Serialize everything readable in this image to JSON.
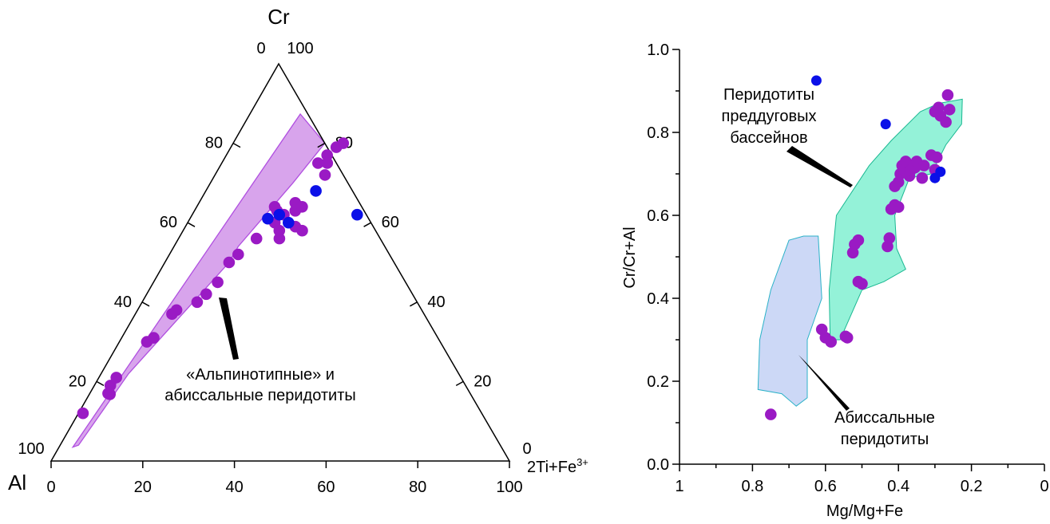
{
  "chart_data": [
    {
      "type": "scatter",
      "subtype": "ternary",
      "vertices": {
        "top": "Cr",
        "left": "Al",
        "right": "2Ti+Fe3+"
      },
      "right_vertex_label": {
        "base": "2Ti+Fe",
        "sup": "3+"
      },
      "bottom_ticks": [
        "0",
        "20",
        "40",
        "60",
        "80",
        "100"
      ],
      "left_side_ticks": [
        "20",
        "40",
        "60",
        "80"
      ],
      "right_side_ticks": [
        "80",
        "60",
        "40",
        "20"
      ],
      "corner_labels": {
        "top_left": "0",
        "top_right": "100",
        "bottom_left": "100",
        "bottom_right": "0"
      },
      "colors": {
        "field_fill": "#d8a4ec",
        "field_stroke": "#b04fe0",
        "purple_point": "#9a1ac4",
        "blue_point": "#0b10e8",
        "axis": "#000000"
      },
      "field": {
        "label_lines": [
          "«Альпинотипные» и",
          "абиссальные перидотиты"
        ],
        "polygon": [
          [
            0.1101,
            0.8735
          ],
          [
            0.2,
            0.8
          ],
          [
            0.18,
            0.7
          ],
          [
            0.14,
            0.54
          ],
          [
            0.14,
            0.5
          ],
          [
            0.06,
            0.22
          ],
          [
            0.04,
            0.04
          ],
          [
            0.0301,
            0.0349
          ]
        ]
      },
      "series": [
        {
          "color": "purple",
          "points": [
            [
              0.01,
              0.12
            ],
            [
              0.04,
              0.17
            ],
            [
              0.045,
              0.168
            ],
            [
              0.035,
              0.19
            ],
            [
              0.038,
              0.21
            ],
            [
              0.06,
              0.3
            ],
            [
              0.07,
              0.31
            ],
            [
              0.08,
              0.37
            ],
            [
              0.085,
              0.38
            ],
            [
              0.13,
              0.42
            ],
            [
              0.12,
              0.4
            ],
            [
              0.14,
              0.45
            ],
            [
              0.14,
              0.5
            ],
            [
              0.15,
              0.52
            ],
            [
              0.17,
              0.56
            ],
            [
              0.19,
              0.6
            ],
            [
              0.2,
              0.62
            ],
            [
              0.22,
              0.56
            ],
            [
              0.21,
              0.58
            ],
            [
              0.24,
              0.59
            ],
            [
              0.26,
              0.58
            ],
            [
              0.21,
              0.65
            ],
            [
              0.22,
              0.63
            ],
            [
              0.23,
              0.64
            ],
            [
              0.18,
              0.63
            ],
            [
              0.17,
              0.64
            ],
            [
              0.21,
              0.75
            ],
            [
              0.22,
              0.77
            ],
            [
              0.23,
              0.75
            ],
            [
              0.23,
              0.79
            ],
            [
              0.24,
              0.8
            ],
            [
              0.24,
              0.72
            ]
          ]
        },
        {
          "color": "blue",
          "points": [
            [
              0.17,
              0.61
            ],
            [
              0.19,
              0.62
            ],
            [
              0.22,
              0.6
            ],
            [
              0.24,
              0.68
            ],
            [
              0.36,
              0.62
            ]
          ]
        }
      ]
    },
    {
      "type": "scatter",
      "ylabel": "Cr/Cr+Al",
      "xlabel": "Mg/Mg+Fe",
      "xlim": [
        1,
        0
      ],
      "ylim": [
        0,
        1
      ],
      "x_ticks": [
        "1",
        "0.8",
        "0.6",
        "0.4",
        "0.2",
        "0"
      ],
      "y_ticks": [
        "0.0",
        "0.2",
        "0.4",
        "0.6",
        "0.8",
        "1.0"
      ],
      "colors": {
        "forearc_fill": "#94f2d8",
        "forearc_stroke": "#1bb892",
        "abyssal_fill": "#ccd8f6",
        "abyssal_stroke": "#2bb2c8",
        "purple_point": "#9a1ac4",
        "blue_point": "#0b10e8"
      },
      "fields": [
        {
          "key": "forearc",
          "label_lines": [
            "Перидотиты",
            "преддуговых",
            "бассейнов"
          ],
          "polygon": [
            [
              0.587,
              0.3
            ],
            [
              0.59,
              0.42
            ],
            [
              0.57,
              0.6
            ],
            [
              0.48,
              0.72
            ],
            [
              0.42,
              0.78
            ],
            [
              0.34,
              0.85
            ],
            [
              0.29,
              0.87
            ],
            [
              0.225,
              0.88
            ],
            [
              0.227,
              0.82
            ],
            [
              0.27,
              0.77
            ],
            [
              0.31,
              0.7
            ],
            [
              0.37,
              0.69
            ],
            [
              0.41,
              0.6
            ],
            [
              0.405,
              0.52
            ],
            [
              0.38,
              0.47
            ],
            [
              0.44,
              0.44
            ],
            [
              0.5,
              0.42
            ],
            [
              0.56,
              0.3
            ]
          ]
        },
        {
          "key": "abyssal",
          "label_lines": [
            "Абиссальные",
            "перидотиты"
          ],
          "polygon": [
            [
              0.72,
              0.17
            ],
            [
              0.785,
              0.18
            ],
            [
              0.78,
              0.3
            ],
            [
              0.75,
              0.42
            ],
            [
              0.7,
              0.54
            ],
            [
              0.66,
              0.55
            ],
            [
              0.62,
              0.55
            ],
            [
              0.61,
              0.4
            ],
            [
              0.65,
              0.3
            ],
            [
              0.65,
              0.16
            ],
            [
              0.68,
              0.14
            ]
          ]
        }
      ],
      "series": [
        {
          "color": "purple",
          "points": [
            [
              0.75,
              0.12
            ],
            [
              0.61,
              0.325
            ],
            [
              0.6,
              0.305
            ],
            [
              0.585,
              0.295
            ],
            [
              0.545,
              0.308
            ],
            [
              0.54,
              0.305
            ],
            [
              0.51,
              0.44
            ],
            [
              0.5,
              0.435
            ],
            [
              0.525,
              0.51
            ],
            [
              0.52,
              0.53
            ],
            [
              0.51,
              0.54
            ],
            [
              0.43,
              0.525
            ],
            [
              0.425,
              0.545
            ],
            [
              0.42,
              0.615
            ],
            [
              0.41,
              0.625
            ],
            [
              0.4,
              0.62
            ],
            [
              0.41,
              0.67
            ],
            [
              0.4,
              0.68
            ],
            [
              0.395,
              0.7
            ],
            [
              0.385,
              0.71
            ],
            [
              0.39,
              0.72
            ],
            [
              0.38,
              0.73
            ],
            [
              0.37,
              0.695
            ],
            [
              0.365,
              0.71
            ],
            [
              0.355,
              0.715
            ],
            [
              0.35,
              0.73
            ],
            [
              0.33,
              0.72
            ],
            [
              0.335,
              0.69
            ],
            [
              0.31,
              0.745
            ],
            [
              0.295,
              0.74
            ],
            [
              0.3,
              0.71
            ],
            [
              0.3,
              0.85
            ],
            [
              0.29,
              0.86
            ],
            [
              0.285,
              0.84
            ],
            [
              0.27,
              0.825
            ],
            [
              0.265,
              0.89
            ],
            [
              0.26,
              0.855
            ]
          ]
        },
        {
          "color": "blue",
          "points": [
            [
              0.625,
              0.925
            ],
            [
              0.435,
              0.82
            ],
            [
              0.3,
              0.69
            ],
            [
              0.285,
              0.705
            ]
          ]
        }
      ]
    }
  ]
}
